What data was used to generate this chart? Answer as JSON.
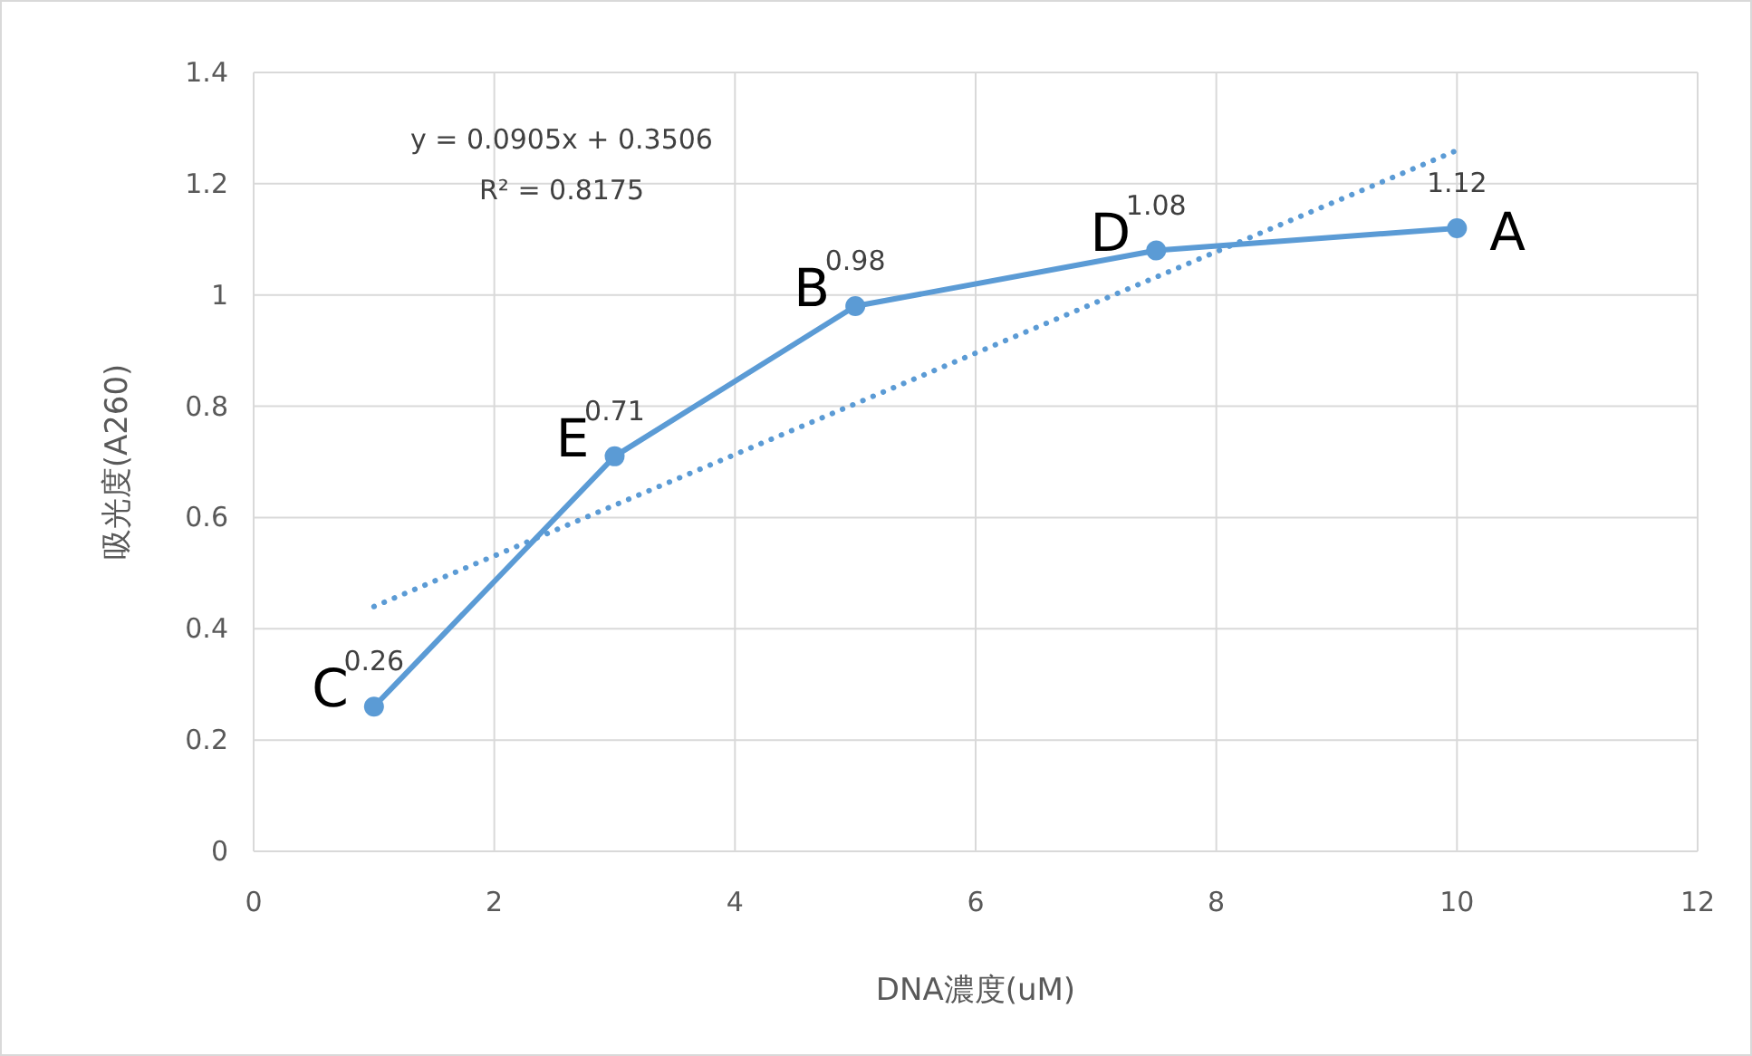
{
  "chart_data": {
    "type": "line",
    "xlabel": "DNA濃度(uM)",
    "ylabel": "吸光度(A260)",
    "xlim": [
      0,
      12
    ],
    "xticks": [
      0,
      2,
      4,
      6,
      8,
      10,
      12
    ],
    "ylim": [
      0,
      1.4
    ],
    "yticks": [
      0,
      0.2,
      0.4,
      0.6,
      0.8,
      1,
      1.2,
      1.4
    ],
    "grid": true,
    "marker": "circle",
    "series": [
      {
        "x": [
          1,
          3,
          5,
          7.5,
          10
        ],
        "values": [
          0.26,
          0.71,
          0.98,
          1.08,
          1.12
        ],
        "color": "#5b9bd5",
        "value_labels": [
          "0.26",
          "0.71",
          "0.98",
          "1.08",
          "1.12"
        ]
      },
      {
        "x": [
          1,
          10
        ],
        "values": [
          0.44,
          1.26
        ],
        "color": "#5b9bd5",
        "line_style": "dotted",
        "marker": "none"
      }
    ],
    "annotations": [
      "y = 0.0905x + 0.3506",
      "R² = 0.8175",
      {
        "text": "C",
        "x": 1,
        "y": 0.26
      },
      {
        "text": "E",
        "x": 3,
        "y": 0.71
      },
      {
        "text": "B",
        "x": 5,
        "y": 0.98
      },
      {
        "text": "D",
        "x": 7.5,
        "y": 1.08
      },
      {
        "text": "A",
        "x": 10,
        "y": 1.12
      }
    ]
  }
}
